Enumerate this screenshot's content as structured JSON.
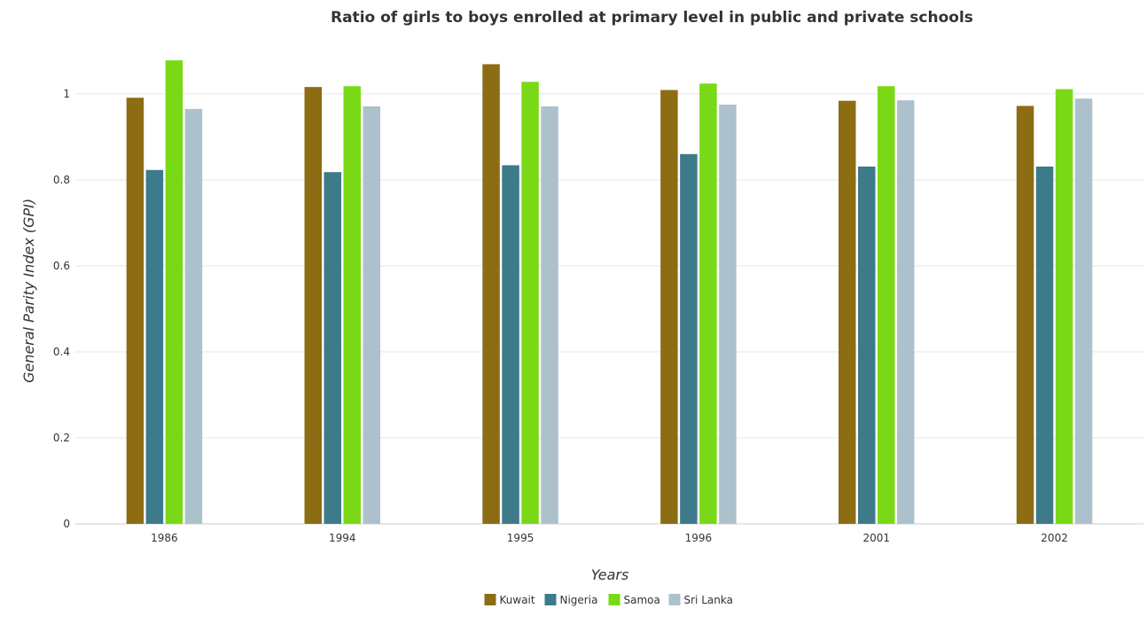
{
  "chart_data": {
    "type": "bar",
    "title": "Ratio of girls to boys enrolled at primary level in public and private schools",
    "xlabel": "Years",
    "ylabel": "General Parity Index (GPI)",
    "categories": [
      "1986",
      "1994",
      "1995",
      "1996",
      "2001",
      "2002"
    ],
    "ylim": [
      0,
      1.14
    ],
    "yticks": [
      0,
      0.2,
      0.4,
      0.6,
      0.8,
      1
    ],
    "grid": true,
    "legend_position": "bottom",
    "series": [
      {
        "name": "Kuwait",
        "color": "#8c6d14",
        "values": [
          0.991,
          1.016,
          1.069,
          1.009,
          0.984,
          0.972
        ]
      },
      {
        "name": "Nigeria",
        "color": "#3d7a8a",
        "values": [
          0.823,
          0.818,
          0.834,
          0.86,
          0.831,
          0.831
        ]
      },
      {
        "name": "Samoa",
        "color": "#7ad916",
        "values": [
          1.078,
          1.018,
          1.028,
          1.024,
          1.018,
          1.011
        ]
      },
      {
        "name": "Sri Lanka",
        "color": "#adc1cc",
        "values": [
          0.965,
          0.971,
          0.971,
          0.975,
          0.985,
          0.989
        ]
      }
    ]
  }
}
